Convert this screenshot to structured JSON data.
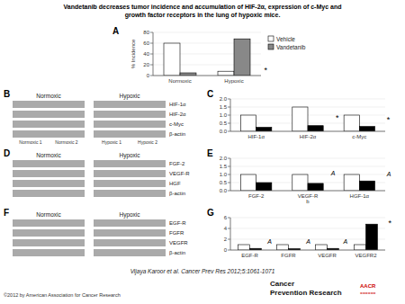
{
  "title": "Vandetanib decreases tumor incidence and accumulation of HIF-2α, expression of c-Myc and",
  "subtitle": "growth factor receptors in the lung of hypoxic mice.",
  "annotations": [
    "Vijaya Karoor et al. Cancer Prev Res 2012;5:1061-1071",
    "©2012 by American Association for Cancer Research",
    "Cancer\nPrevention Research",
    "AACR",
    "======"
  ],
  "chart_data": [
    {
      "type": "bar",
      "title": "A",
      "ylabel": "% Incidence",
      "categories": [
        "Normoxic",
        "Hypoxic"
      ],
      "series": [
        {
          "name": "Vehicle",
          "color": "#ffffff",
          "values": [
            60,
            8
          ]
        },
        {
          "name": "Vandetanib",
          "color": "#888888",
          "values": [
            5,
            68
          ]
        }
      ],
      "ylim": [
        0,
        80
      ],
      "yticks": [
        0,
        20,
        40,
        60,
        80
      ],
      "legend": "upper right",
      "annotations": [
        "*"
      ]
    },
    {
      "type": "blot",
      "title": "B",
      "color": "#aaaaaa",
      "categories": [
        "HIF-1α",
        "HIF-2α",
        "c-Myc",
        "β-actin"
      ],
      "annotations": [
        "Normoxic",
        "Hypoxic",
        "Normoxic 1",
        "Normoxic 2",
        "Hypoxic 1",
        "Hypoxic 2"
      ]
    },
    {
      "type": "bar",
      "title": "C",
      "categories": [
        "HIF-1α",
        "HIF-2α",
        "c-Myc"
      ],
      "series": [
        {
          "color": "#ffffff",
          "values": [
            1.0,
            1.5,
            1.0
          ]
        },
        {
          "color": "#000000",
          "values": [
            0.25,
            0.35,
            0.3
          ]
        }
      ],
      "ylim": [
        0,
        2.0
      ],
      "yticks": [
        {
          "value": 0,
          "label": "0.0"
        },
        0.5,
        {
          "value": 1,
          "label": "1.0"
        },
        1.5,
        {
          "value": 2,
          "label": "2.0"
        }
      ],
      "annotations": [
        "*",
        "*"
      ]
    },
    {
      "type": "blot",
      "title": "D",
      "color": "#aaaaaa",
      "categories": [
        "FGF-2",
        "VEGF-R",
        "HGF",
        "β-actin"
      ],
      "annotations": [
        "Normoxic",
        "Hypoxic"
      ]
    },
    {
      "type": "bar",
      "title": "E",
      "categories": [
        "FGF-2",
        "VEGF-R\nb",
        "HGF-1α"
      ],
      "series": [
        {
          "color": "#ffffff",
          "values": [
            1.0,
            1.0,
            1.0
          ]
        },
        {
          "color": "#000000",
          "values": [
            0.5,
            0.45,
            0.6
          ]
        }
      ],
      "ylim": [
        0,
        2.0
      ],
      "yticks": [
        {
          "value": 0,
          "label": "0.0"
        },
        0.5,
        {
          "value": 1,
          "label": "1.0"
        },
        1.5,
        {
          "value": 2,
          "label": "2.0"
        }
      ],
      "annotations": [
        "A",
        "A"
      ]
    },
    {
      "type": "blot",
      "title": "F",
      "color": "#aaaaaa",
      "categories": [
        "EGF-R",
        "FGFR",
        "VEGFR",
        "β-actin"
      ],
      "annotations": [
        "Normoxic",
        "Hypoxic"
      ]
    },
    {
      "type": "bar",
      "title": "G",
      "categories": [
        "EGF-R",
        "FGFR",
        "VEGFR",
        "VEGFR2"
      ],
      "series": [
        {
          "color": "#ffffff",
          "values": [
            1.0,
            1.0,
            1.0,
            1.0
          ]
        },
        {
          "color": "#000000",
          "values": [
            0.3,
            0.25,
            0.3,
            4.8
          ]
        }
      ],
      "ylim": [
        0,
        6.0
      ],
      "yticks": [
        0,
        2,
        4,
        6
      ],
      "annotations": [
        "*",
        "A",
        "A",
        "A"
      ]
    }
  ]
}
